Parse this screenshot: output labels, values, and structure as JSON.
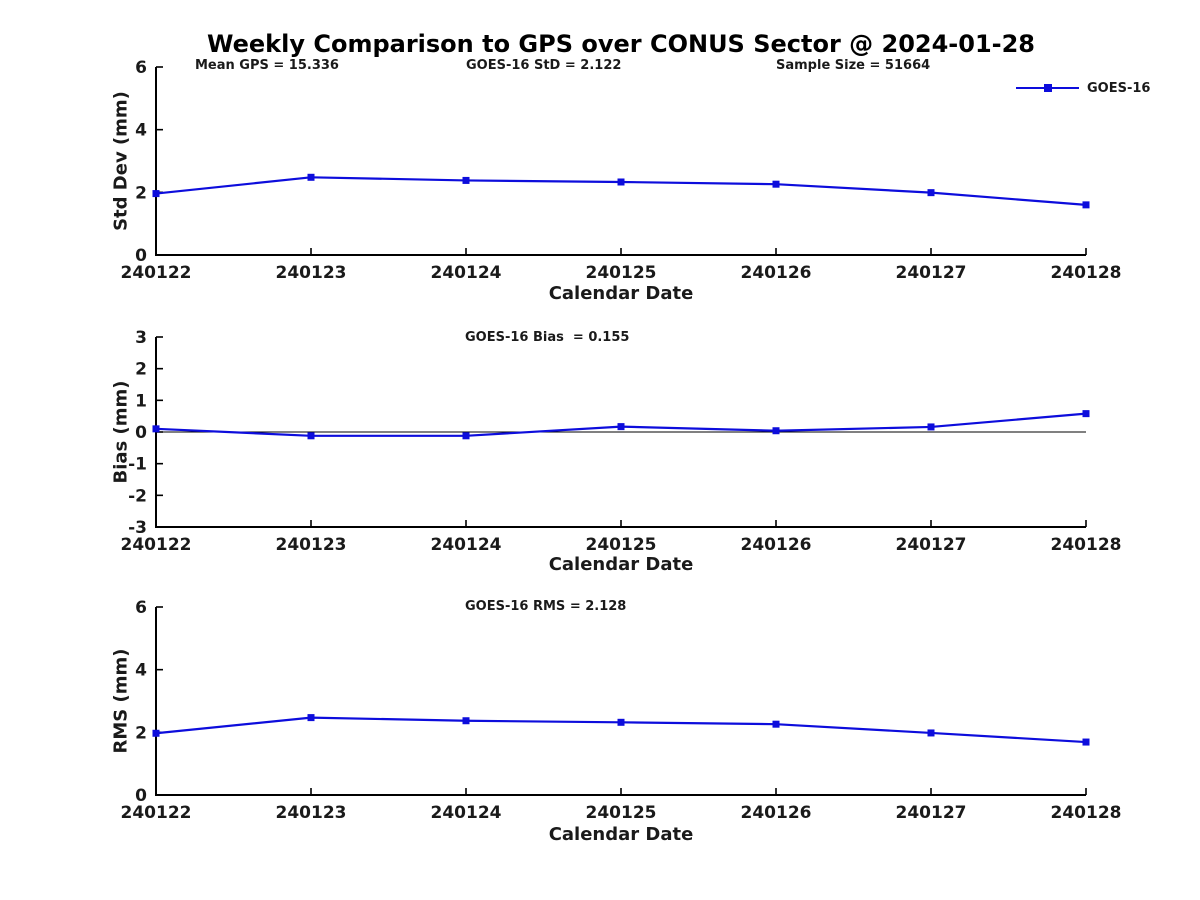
{
  "title": "Weekly Comparison to GPS over CONUS Sector @ 2024-01-28",
  "legend": {
    "label": "GOES-16",
    "position": "top-right",
    "box": false
  },
  "colors": {
    "line": "#0d0ddc",
    "axis": "#000000",
    "zero_line": "#000000",
    "text": "#1a1a1a",
    "background": "#ffffff"
  },
  "chart_data": [
    {
      "type": "line",
      "series_name": "GOES-16",
      "categories": [
        "240122",
        "240123",
        "240124",
        "240125",
        "240126",
        "240127",
        "240128"
      ],
      "values": [
        1.96,
        2.48,
        2.38,
        2.33,
        2.26,
        1.99,
        1.6
      ],
      "ylabel": "Std Dev (mm)",
      "xlabel": "Calendar Date",
      "ylim": [
        0,
        6
      ],
      "yticks": [
        0,
        2,
        4,
        6
      ],
      "grid": false,
      "marker": "square",
      "annotations": [
        "Mean GPS = 15.336",
        "GOES-16 StD = 2.122",
        "Sample Size = 51664"
      ]
    },
    {
      "type": "line",
      "series_name": "GOES-16",
      "categories": [
        "240122",
        "240123",
        "240124",
        "240125",
        "240126",
        "240127",
        "240128"
      ],
      "values": [
        0.1,
        -0.12,
        -0.12,
        0.17,
        0.04,
        0.16,
        0.58
      ],
      "ylabel": "Bias (mm)",
      "xlabel": "Calendar Date",
      "ylim": [
        -3,
        3
      ],
      "yticks": [
        -3,
        -2,
        -1,
        0,
        1,
        2,
        3
      ],
      "zero_line": true,
      "grid": false,
      "marker": "square",
      "annotations": [
        "GOES-16 Bias  = 0.155"
      ]
    },
    {
      "type": "line",
      "series_name": "GOES-16",
      "categories": [
        "240122",
        "240123",
        "240124",
        "240125",
        "240126",
        "240127",
        "240128"
      ],
      "values": [
        1.97,
        2.47,
        2.37,
        2.32,
        2.26,
        1.98,
        1.69
      ],
      "ylabel": "RMS (mm)",
      "xlabel": "Calendar Date",
      "ylim": [
        0,
        6
      ],
      "yticks": [
        0,
        2,
        4,
        6
      ],
      "grid": false,
      "marker": "square",
      "annotations": [
        "GOES-16 RMS = 2.128"
      ]
    }
  ]
}
